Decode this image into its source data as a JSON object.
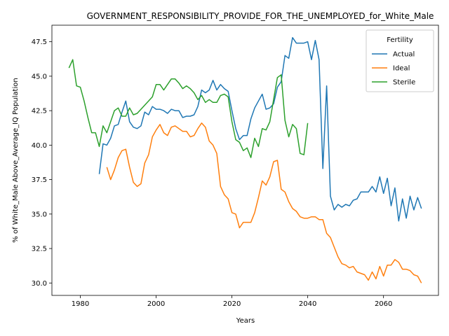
{
  "chart_data": {
    "type": "line",
    "title": "GOVERNMENT_RESPONSIBILITY_PROVIDE_FOR_THE_UNEMPLOYED_for_White_Male",
    "xlabel": "Years",
    "ylabel": "% of White_Male Above_Average_IQ Population",
    "xlim": [
      1972.5,
      2074.5
    ],
    "ylim": [
      29.1,
      48.7
    ],
    "xticks": [
      1980,
      2000,
      2020,
      2040,
      2060
    ],
    "yticks": [
      30.0,
      32.5,
      35.0,
      37.5,
      40.0,
      42.5,
      45.0,
      47.5
    ],
    "ytick_labels": [
      "30.0",
      "32.5",
      "35.0",
      "37.5",
      "40.0",
      "42.5",
      "45.0",
      "47.5"
    ],
    "grid": false,
    "legend": {
      "title": "Fertility",
      "position": "top-right"
    },
    "series": [
      {
        "name": "Actual",
        "color": "#1f77b4",
        "x": [
          1985,
          1986,
          1987,
          1988,
          1989,
          1990,
          1991,
          1992,
          1993,
          1994,
          1995,
          1996,
          1997,
          1998,
          1999,
          2000,
          2001,
          2002,
          2003,
          2004,
          2005,
          2006,
          2007,
          2008,
          2009,
          2010,
          2011,
          2012,
          2013,
          2014,
          2015,
          2016,
          2017,
          2018,
          2019,
          2020,
          2021,
          2022,
          2023,
          2024,
          2025,
          2026,
          2027,
          2028,
          2029,
          2030,
          2031,
          2032,
          2033,
          2034,
          2035,
          2036,
          2037,
          2038,
          2039,
          2040,
          2041,
          2042,
          2043,
          2044,
          2045,
          2046,
          2047,
          2048,
          2049,
          2050,
          2051,
          2052,
          2053,
          2054,
          2055,
          2056,
          2057,
          2058,
          2059,
          2060,
          2061,
          2062,
          2063,
          2064,
          2065,
          2066,
          2067,
          2068,
          2069,
          2070
        ],
        "y": [
          37.9,
          40.1,
          40.0,
          40.5,
          41.4,
          41.5,
          42.4,
          43.2,
          41.7,
          41.3,
          41.2,
          41.4,
          42.4,
          42.2,
          42.8,
          42.6,
          42.6,
          42.5,
          42.3,
          42.6,
          42.5,
          42.5,
          42.0,
          42.1,
          42.1,
          42.2,
          42.8,
          44.0,
          43.8,
          44.0,
          44.7,
          44.0,
          44.4,
          44.1,
          43.9,
          42.5,
          41.2,
          40.4,
          40.7,
          40.7,
          41.9,
          42.7,
          43.2,
          43.7,
          42.6,
          42.7,
          43.0,
          44.2,
          44.6,
          46.5,
          46.3,
          47.8,
          47.4,
          47.4,
          47.4,
          47.5,
          46.2,
          47.6,
          46.2,
          38.3,
          44.3,
          36.3,
          35.3,
          35.7,
          35.5,
          35.7,
          35.6,
          36.0,
          36.1,
          36.6,
          36.6,
          36.6,
          37.0,
          36.6,
          37.7,
          36.5,
          37.6,
          35.6,
          36.9,
          34.5,
          36.1,
          34.7,
          36.3,
          35.3,
          36.2,
          35.4
        ]
      },
      {
        "name": "Ideal",
        "color": "#ff7f0e",
        "x": [
          1987,
          1988,
          1989,
          1990,
          1991,
          1992,
          1993,
          1994,
          1995,
          1996,
          1997,
          1998,
          1999,
          2000,
          2001,
          2002,
          2003,
          2004,
          2005,
          2006,
          2007,
          2008,
          2009,
          2010,
          2011,
          2012,
          2013,
          2014,
          2015,
          2016,
          2017,
          2018,
          2019,
          2020,
          2021,
          2022,
          2023,
          2024,
          2025,
          2026,
          2027,
          2028,
          2029,
          2030,
          2031,
          2032,
          2033,
          2034,
          2035,
          2036,
          2037,
          2038,
          2039,
          2040,
          2041,
          2042,
          2043,
          2044,
          2045,
          2046,
          2047,
          2048,
          2049,
          2050,
          2051,
          2052,
          2053,
          2054,
          2055,
          2056,
          2057,
          2058,
          2059,
          2060,
          2061,
          2062,
          2063,
          2064,
          2065,
          2066,
          2067,
          2068,
          2069,
          2070
        ],
        "y": [
          38.4,
          37.5,
          38.2,
          39.1,
          39.6,
          39.7,
          38.4,
          37.3,
          37.0,
          37.2,
          38.7,
          39.3,
          40.6,
          41.1,
          41.5,
          40.9,
          40.7,
          41.3,
          41.4,
          41.2,
          41.0,
          41.0,
          40.6,
          40.7,
          41.2,
          41.6,
          41.3,
          40.3,
          40.0,
          39.4,
          37.0,
          36.4,
          36.1,
          35.1,
          35.0,
          34.0,
          34.4,
          34.4,
          34.4,
          35.1,
          36.2,
          37.4,
          37.1,
          37.7,
          38.8,
          38.9,
          36.8,
          36.6,
          35.9,
          35.4,
          35.2,
          34.8,
          34.7,
          34.7,
          34.8,
          34.8,
          34.6,
          34.6,
          33.6,
          33.3,
          32.6,
          31.9,
          31.4,
          31.3,
          31.1,
          31.2,
          30.8,
          30.7,
          30.6,
          30.2,
          30.8,
          30.3,
          31.2,
          30.5,
          31.3,
          31.3,
          31.7,
          31.5,
          31.0,
          31.0,
          30.9,
          30.6,
          30.5,
          30.0
        ]
      },
      {
        "name": "Sterile",
        "color": "#2ca02c",
        "x": [
          1977,
          1978,
          1979,
          1980,
          1981,
          1982,
          1983,
          1984,
          1985,
          1986,
          1987,
          1988,
          1989,
          1990,
          1991,
          1992,
          1993,
          1994,
          1995,
          1996,
          1997,
          1998,
          1999,
          2000,
          2001,
          2002,
          2003,
          2004,
          2005,
          2006,
          2007,
          2008,
          2009,
          2010,
          2011,
          2012,
          2013,
          2014,
          2015,
          2016,
          2017,
          2018,
          2019,
          2020,
          2021,
          2022,
          2023,
          2024,
          2025,
          2026,
          2027,
          2028,
          2029,
          2030,
          2031,
          2032,
          2033,
          2034,
          2035,
          2036,
          2037,
          2038,
          2039,
          2040
        ],
        "y": [
          45.6,
          46.2,
          44.3,
          44.2,
          43.2,
          42.0,
          40.9,
          40.9,
          39.9,
          41.4,
          40.9,
          41.7,
          42.5,
          42.7,
          42.1,
          42.1,
          42.7,
          42.2,
          42.3,
          42.6,
          42.9,
          43.2,
          43.5,
          44.4,
          44.4,
          44.0,
          44.4,
          44.8,
          44.8,
          44.5,
          44.1,
          44.3,
          44.1,
          43.8,
          43.3,
          43.6,
          43.1,
          43.3,
          43.1,
          43.1,
          43.6,
          43.7,
          43.5,
          41.7,
          40.4,
          40.2,
          39.6,
          39.8,
          39.1,
          40.5,
          39.9,
          41.2,
          41.1,
          41.7,
          43.3,
          44.9,
          45.1,
          41.8,
          40.6,
          41.5,
          41.2,
          39.4,
          39.3,
          41.6
        ]
      }
    ]
  }
}
